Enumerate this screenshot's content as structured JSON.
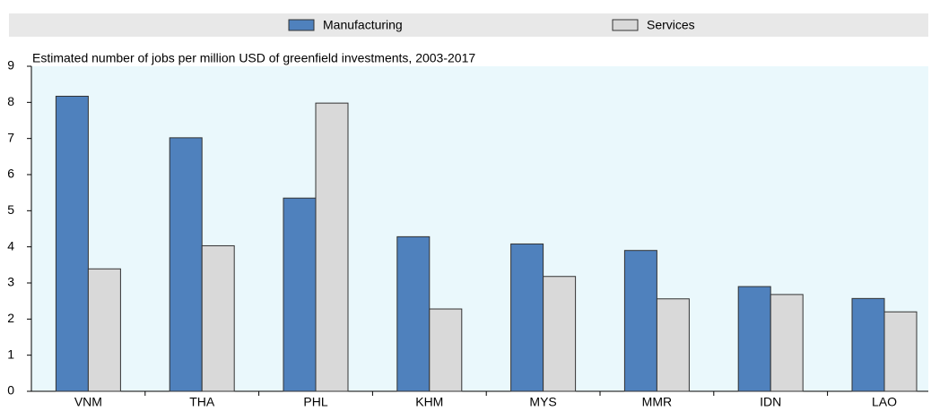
{
  "chart_data": {
    "type": "bar",
    "subtitle": "Estimated number of jobs per million USD of greenfield investments, 2003-2017",
    "categories": [
      "VNM",
      "THA",
      "PHL",
      "KHM",
      "MYS",
      "MMR",
      "IDN",
      "LAO"
    ],
    "series": [
      {
        "name": "Manufacturing",
        "color": "#4f81bd",
        "values": [
          8.17,
          7.02,
          5.35,
          4.28,
          4.08,
          3.9,
          2.9,
          2.57
        ]
      },
      {
        "name": "Services",
        "color": "#d9d9d9",
        "values": [
          3.39,
          4.03,
          7.98,
          2.28,
          3.18,
          2.56,
          2.68,
          2.2
        ]
      }
    ],
    "ylim": [
      0,
      9
    ],
    "yticks": [
      0,
      1,
      2,
      3,
      4,
      5,
      6,
      7,
      8,
      9
    ],
    "grid": false
  }
}
